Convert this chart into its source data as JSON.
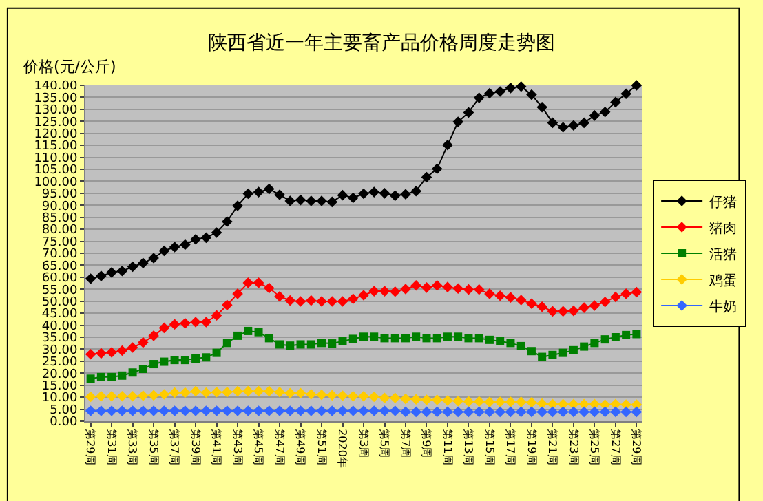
{
  "chart_data": {
    "type": "line",
    "title": "陕西省近一年主要畜产品价格周度走势图",
    "ylabel": "价格(元/公斤)",
    "categories": [
      "第29周",
      null,
      "第31周",
      null,
      "第33周",
      null,
      "第35周",
      null,
      "第37周",
      null,
      "第39周",
      null,
      "第41周",
      null,
      "第43周",
      null,
      "第45周",
      null,
      "第47周",
      null,
      "第49周",
      null,
      "第51周",
      null,
      "2020年",
      null,
      "第3周",
      null,
      "第5周",
      null,
      "第7周",
      null,
      "第9周",
      null,
      "第11周",
      null,
      "第13周",
      null,
      "第15周",
      null,
      "第17周",
      null,
      "第19周",
      null,
      "第21周",
      null,
      "第23周",
      null,
      "第25周",
      null,
      "第27周",
      null,
      "第29周"
    ],
    "ylim": [
      0,
      140
    ],
    "yticks": [
      {
        "value": 0,
        "label": "0.00"
      },
      {
        "value": 5,
        "label": "5.00"
      },
      {
        "value": 10,
        "label": "10.00"
      },
      {
        "value": 15,
        "label": "15.00"
      },
      {
        "value": 20,
        "label": "20.00"
      },
      {
        "value": 25,
        "label": "25.00"
      },
      {
        "value": 30,
        "label": "30.00"
      },
      {
        "value": 35,
        "label": "35.00"
      },
      {
        "value": 40,
        "label": "40.00"
      },
      {
        "value": 45,
        "label": "45.00"
      },
      {
        "value": 50,
        "label": "50.00"
      },
      {
        "value": 55,
        "label": "55.00"
      },
      {
        "value": 60,
        "label": "60.00"
      },
      {
        "value": 65,
        "label": "65.00"
      },
      {
        "value": 70,
        "label": "70.00"
      },
      {
        "value": 75,
        "label": "75.00"
      },
      {
        "value": 80,
        "label": "80.00"
      },
      {
        "value": 85,
        "label": "85.00"
      },
      {
        "value": 90,
        "label": "90.00"
      },
      {
        "value": 95,
        "label": "95.00"
      },
      {
        "value": 100,
        "label": "100.00"
      },
      {
        "value": 105,
        "label": "105.00"
      },
      {
        "value": 110,
        "label": "110.00"
      },
      {
        "value": 115,
        "label": "115.00"
      },
      {
        "value": 120,
        "label": "120.00"
      },
      {
        "value": 125,
        "label": "125.00"
      },
      {
        "value": 130,
        "label": "130.00"
      },
      {
        "value": 135,
        "label": "135.00"
      },
      {
        "value": 140,
        "label": "140.00"
      }
    ],
    "grid": "y",
    "legend": "right",
    "line_style": "solid",
    "series": [
      {
        "name": "仔猪",
        "color": "#000000",
        "marker": "diamond",
        "values": [
          59.4,
          60.5,
          62,
          62.6,
          64.4,
          65.9,
          68,
          71,
          72.6,
          73.6,
          75.8,
          76.5,
          78.6,
          83.2,
          89.8,
          94.8,
          95.5,
          96.8,
          94.4,
          91.8,
          92.2,
          91.8,
          91.8,
          91.4,
          94.2,
          93.1,
          94.8,
          95.5,
          95,
          94,
          94.6,
          95.9,
          101.7,
          105.2,
          115.1,
          124.8,
          128.7,
          134.8,
          136.7,
          137.4,
          138.9,
          139.5,
          136.1,
          130.9,
          124.4,
          122.5,
          123.3,
          124.4,
          127.4,
          128.9,
          133,
          136.5,
          140
        ]
      },
      {
        "name": "猪肉",
        "color": "#ff0000",
        "marker": "diamond",
        "values": [
          27.9,
          28.3,
          28.7,
          29.4,
          30.7,
          32.8,
          35.6,
          38.9,
          40.4,
          40.8,
          41.3,
          41.3,
          44.1,
          48.4,
          53.1,
          57.7,
          57.7,
          55.5,
          52,
          50.3,
          49.9,
          50.3,
          49.9,
          49.9,
          49.9,
          51,
          52.5,
          54.2,
          54.2,
          54,
          55.1,
          56.6,
          55.7,
          56.6,
          55.9,
          55.3,
          54.9,
          54.9,
          53.1,
          52.3,
          51.6,
          50.5,
          49,
          47.7,
          45.8,
          45.8,
          46,
          47.3,
          48.2,
          49.7,
          51.8,
          53.1,
          53.8
        ]
      },
      {
        "name": "活猪",
        "color": "#008000",
        "marker": "square",
        "values": [
          17.7,
          18.4,
          18.4,
          19,
          20.3,
          21.8,
          23.8,
          24.8,
          25.5,
          25.5,
          26.1,
          26.6,
          28.5,
          32.6,
          35.6,
          37.6,
          37.1,
          34.6,
          32,
          31.5,
          32,
          32,
          32.6,
          32.4,
          33.3,
          34.3,
          35.2,
          35.2,
          34.6,
          34.6,
          34.6,
          35.2,
          34.6,
          34.6,
          35.2,
          35.2,
          34.6,
          34.6,
          33.9,
          33.3,
          32.6,
          31.3,
          29.2,
          26.8,
          27.6,
          28.5,
          29.6,
          31.1,
          32.6,
          34.1,
          35,
          35.9,
          36.3
        ]
      },
      {
        "name": "鸡蛋",
        "color": "#ffcc00",
        "marker": "diamond",
        "values": [
          10.2,
          10.4,
          10.4,
          10.4,
          10.4,
          10.6,
          10.8,
          11.2,
          11.9,
          11.9,
          12.5,
          11.9,
          12.1,
          12.1,
          12.5,
          12.5,
          12.5,
          12.5,
          12.1,
          11.7,
          11.7,
          11.2,
          11,
          10.8,
          10.6,
          10.4,
          10.4,
          10.2,
          9.7,
          9.7,
          9.3,
          9.1,
          8.9,
          8.9,
          8.6,
          8.4,
          8.2,
          8.2,
          8,
          8,
          8,
          8,
          7.8,
          7.3,
          7.1,
          7.1,
          7.1,
          7.1,
          7.1,
          6.9,
          7.1,
          6.9,
          6.9
        ]
      },
      {
        "name": "牛奶",
        "color": "#3366ff",
        "marker": "diamond",
        "values": [
          4.3,
          4.3,
          4.3,
          4.3,
          4.3,
          4.3,
          4.3,
          4.3,
          4.3,
          4.3,
          4.3,
          4.3,
          4.3,
          4.3,
          4.3,
          4.3,
          4.3,
          4.3,
          4.3,
          4.3,
          4.3,
          4.3,
          4.3,
          4.3,
          4.3,
          4.3,
          4.3,
          4.3,
          4.3,
          4.3,
          3.9,
          3.9,
          3.9,
          3.9,
          3.9,
          3.9,
          3.9,
          3.9,
          3.9,
          3.9,
          3.9,
          3.9,
          3.9,
          3.9,
          3.9,
          3.9,
          3.9,
          3.9,
          3.9,
          3.9,
          3.9,
          3.9,
          3.9
        ]
      }
    ]
  }
}
